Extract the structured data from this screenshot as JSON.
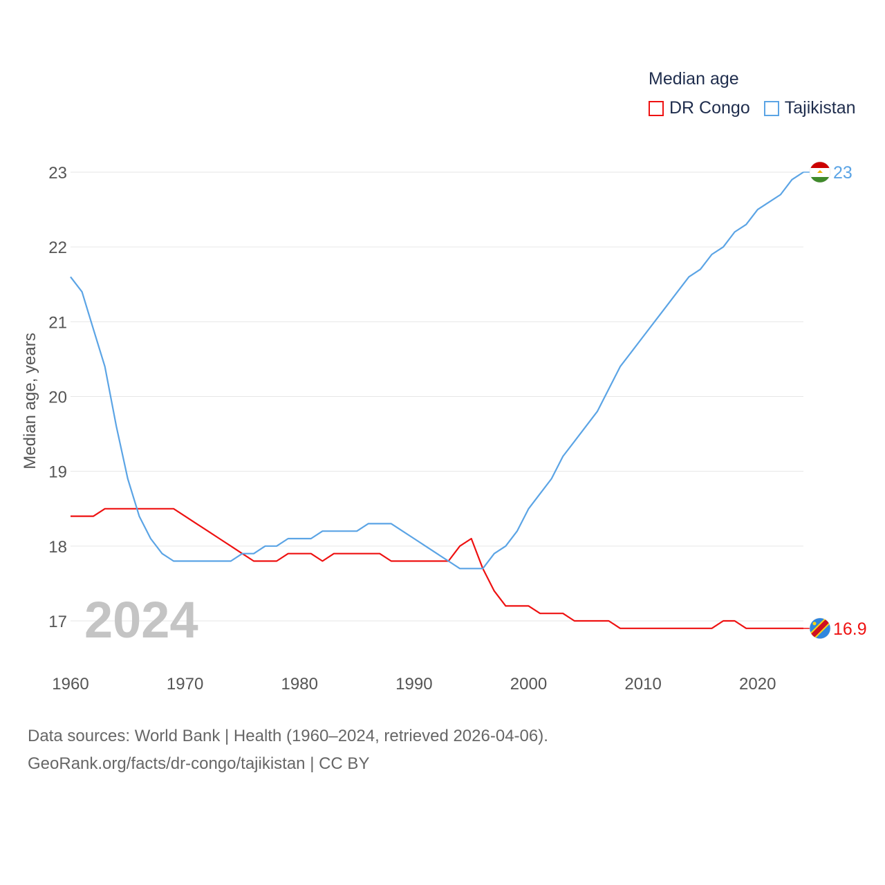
{
  "legend": {
    "title": "Median age"
  },
  "source": {
    "line1": "Data sources: World Bank | Health (1960–2024, retrieved 2026-04-06).",
    "line2": "GeoRank.org/facts/dr-congo/tajikistan | CC BY"
  },
  "chart_data": {
    "type": "line",
    "title": "Median age",
    "xlabel": "",
    "ylabel": "Median age, years",
    "year_label": "2024",
    "xlim": [
      1960,
      2024
    ],
    "ylim": [
      16.5,
      23.2
    ],
    "x_ticks": [
      1960,
      1970,
      1980,
      1990,
      2000,
      2010,
      2020
    ],
    "y_ticks": [
      17,
      18,
      19,
      20,
      21,
      22,
      23
    ],
    "grid": true,
    "legend_position": "top-right",
    "x": [
      1960,
      1961,
      1962,
      1963,
      1964,
      1965,
      1966,
      1967,
      1968,
      1969,
      1970,
      1971,
      1972,
      1973,
      1974,
      1975,
      1976,
      1977,
      1978,
      1979,
      1980,
      1981,
      1982,
      1983,
      1984,
      1985,
      1986,
      1987,
      1988,
      1989,
      1990,
      1991,
      1992,
      1993,
      1994,
      1995,
      1996,
      1997,
      1998,
      1999,
      2000,
      2001,
      2002,
      2003,
      2004,
      2005,
      2006,
      2007,
      2008,
      2009,
      2010,
      2011,
      2012,
      2013,
      2014,
      2015,
      2016,
      2017,
      2018,
      2019,
      2020,
      2021,
      2022,
      2023,
      2024
    ],
    "series": [
      {
        "name": "DR Congo",
        "color": "#ee1111",
        "end_label": "16.9",
        "flag": "dr-congo-flag-icon",
        "values": [
          18.4,
          18.4,
          18.4,
          18.5,
          18.5,
          18.5,
          18.5,
          18.5,
          18.5,
          18.5,
          18.4,
          18.3,
          18.2,
          18.1,
          18.0,
          17.9,
          17.8,
          17.8,
          17.8,
          17.9,
          17.9,
          17.9,
          17.8,
          17.9,
          17.9,
          17.9,
          17.9,
          17.9,
          17.8,
          17.8,
          17.8,
          17.8,
          17.8,
          17.8,
          18.0,
          18.1,
          17.7,
          17.4,
          17.2,
          17.2,
          17.2,
          17.1,
          17.1,
          17.1,
          17.0,
          17.0,
          17.0,
          17.0,
          16.9,
          16.9,
          16.9,
          16.9,
          16.9,
          16.9,
          16.9,
          16.9,
          16.9,
          17.0,
          17.0,
          16.9,
          16.9,
          16.9,
          16.9,
          16.9,
          16.9
        ]
      },
      {
        "name": "Tajikistan",
        "color": "#5ba4e5",
        "end_label": "23",
        "flag": "tajikistan-flag-icon",
        "values": [
          21.6,
          21.4,
          20.9,
          20.4,
          19.6,
          18.9,
          18.4,
          18.1,
          17.9,
          17.8,
          17.8,
          17.8,
          17.8,
          17.8,
          17.8,
          17.9,
          17.9,
          18.0,
          18.0,
          18.1,
          18.1,
          18.1,
          18.2,
          18.2,
          18.2,
          18.2,
          18.3,
          18.3,
          18.3,
          18.2,
          18.1,
          18.0,
          17.9,
          17.8,
          17.7,
          17.7,
          17.7,
          17.9,
          18.0,
          18.2,
          18.5,
          18.7,
          18.9,
          19.2,
          19.4,
          19.6,
          19.8,
          20.1,
          20.4,
          20.6,
          20.8,
          21.0,
          21.2,
          21.4,
          21.6,
          21.7,
          21.9,
          22.0,
          22.2,
          22.3,
          22.5,
          22.6,
          22.7,
          22.9,
          23.0
        ]
      }
    ]
  }
}
